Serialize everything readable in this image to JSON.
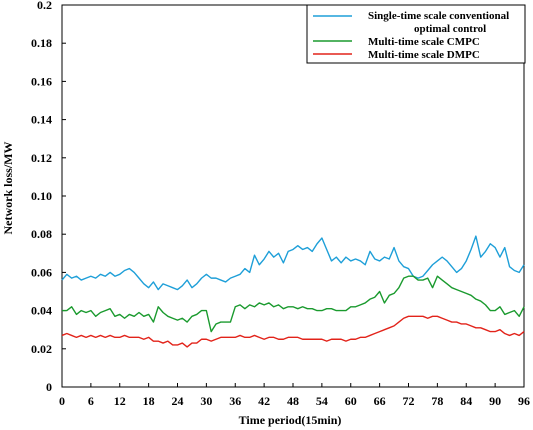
{
  "chart_data": {
    "type": "line",
    "xlabel": "Time period(15min)",
    "ylabel": "Network loss/MW",
    "xlim": [
      0,
      96
    ],
    "ylim": [
      0,
      0.2
    ],
    "xticks": [
      "0",
      "6",
      "12",
      "18",
      "24",
      "30",
      "36",
      "42",
      "48",
      "54",
      "60",
      "66",
      "72",
      "78",
      "84",
      "90",
      "96"
    ],
    "yticks": [
      "0",
      "0.02",
      "0.04",
      "0.06",
      "0.08",
      "0.10",
      "0.12",
      "0.14",
      "0.16",
      "0.18",
      "0.2"
    ],
    "grid": false,
    "legend_position": "top-right",
    "legend_lines": [
      [
        "Single-time scale conventional",
        "optimal control"
      ],
      [
        "Multi-time scale CMPC"
      ],
      [
        "Multi-time scale DMPC"
      ]
    ],
    "series": [
      {
        "name": "Single-time scale conventional optimal control",
        "color": "#1e9fd8",
        "values": [
          0.056,
          0.059,
          0.057,
          0.058,
          0.056,
          0.057,
          0.058,
          0.057,
          0.059,
          0.058,
          0.06,
          0.058,
          0.059,
          0.061,
          0.062,
          0.06,
          0.057,
          0.054,
          0.052,
          0.055,
          0.051,
          0.054,
          0.053,
          0.052,
          0.051,
          0.053,
          0.056,
          0.052,
          0.054,
          0.057,
          0.059,
          0.057,
          0.057,
          0.056,
          0.055,
          0.057,
          0.058,
          0.059,
          0.062,
          0.06,
          0.069,
          0.064,
          0.067,
          0.071,
          0.068,
          0.07,
          0.065,
          0.071,
          0.072,
          0.074,
          0.072,
          0.073,
          0.071,
          0.075,
          0.078,
          0.072,
          0.066,
          0.068,
          0.065,
          0.068,
          0.066,
          0.067,
          0.066,
          0.064,
          0.071,
          0.067,
          0.066,
          0.068,
          0.067,
          0.073,
          0.066,
          0.063,
          0.062,
          0.058,
          0.057,
          0.058,
          0.061,
          0.064,
          0.066,
          0.068,
          0.066,
          0.063,
          0.06,
          0.062,
          0.066,
          0.072,
          0.079,
          0.068,
          0.071,
          0.075,
          0.073,
          0.068,
          0.073,
          0.063,
          0.061,
          0.06,
          0.064
        ]
      },
      {
        "name": "Multi-time scale CMPC",
        "color": "#1a9a2e",
        "values": [
          0.04,
          0.04,
          0.042,
          0.038,
          0.04,
          0.039,
          0.04,
          0.037,
          0.039,
          0.04,
          0.041,
          0.037,
          0.038,
          0.036,
          0.038,
          0.037,
          0.039,
          0.037,
          0.038,
          0.034,
          0.042,
          0.039,
          0.037,
          0.036,
          0.035,
          0.036,
          0.034,
          0.037,
          0.038,
          0.04,
          0.04,
          0.029,
          0.033,
          0.034,
          0.034,
          0.034,
          0.042,
          0.043,
          0.041,
          0.043,
          0.042,
          0.044,
          0.043,
          0.044,
          0.042,
          0.043,
          0.041,
          0.042,
          0.042,
          0.041,
          0.042,
          0.041,
          0.041,
          0.04,
          0.04,
          0.041,
          0.041,
          0.04,
          0.04,
          0.04,
          0.042,
          0.042,
          0.043,
          0.044,
          0.046,
          0.047,
          0.05,
          0.044,
          0.048,
          0.049,
          0.052,
          0.057,
          0.058,
          0.058,
          0.056,
          0.056,
          0.057,
          0.052,
          0.058,
          0.056,
          0.054,
          0.052,
          0.051,
          0.05,
          0.049,
          0.048,
          0.046,
          0.045,
          0.043,
          0.04,
          0.04,
          0.042,
          0.038,
          0.039,
          0.04,
          0.037,
          0.042
        ]
      },
      {
        "name": "Multi-time scale DMPC",
        "color": "#e2231a",
        "values": [
          0.027,
          0.028,
          0.027,
          0.026,
          0.027,
          0.026,
          0.027,
          0.026,
          0.027,
          0.026,
          0.027,
          0.026,
          0.026,
          0.027,
          0.026,
          0.026,
          0.026,
          0.025,
          0.026,
          0.024,
          0.024,
          0.023,
          0.024,
          0.022,
          0.022,
          0.023,
          0.021,
          0.023,
          0.023,
          0.025,
          0.025,
          0.024,
          0.025,
          0.026,
          0.026,
          0.026,
          0.026,
          0.027,
          0.026,
          0.026,
          0.027,
          0.026,
          0.025,
          0.026,
          0.026,
          0.025,
          0.025,
          0.026,
          0.026,
          0.026,
          0.025,
          0.025,
          0.025,
          0.025,
          0.025,
          0.024,
          0.025,
          0.025,
          0.025,
          0.024,
          0.025,
          0.025,
          0.026,
          0.026,
          0.027,
          0.028,
          0.029,
          0.03,
          0.031,
          0.032,
          0.034,
          0.036,
          0.037,
          0.037,
          0.037,
          0.037,
          0.036,
          0.037,
          0.037,
          0.036,
          0.035,
          0.034,
          0.034,
          0.033,
          0.033,
          0.032,
          0.031,
          0.031,
          0.03,
          0.029,
          0.029,
          0.03,
          0.028,
          0.027,
          0.028,
          0.027,
          0.029
        ]
      }
    ]
  }
}
